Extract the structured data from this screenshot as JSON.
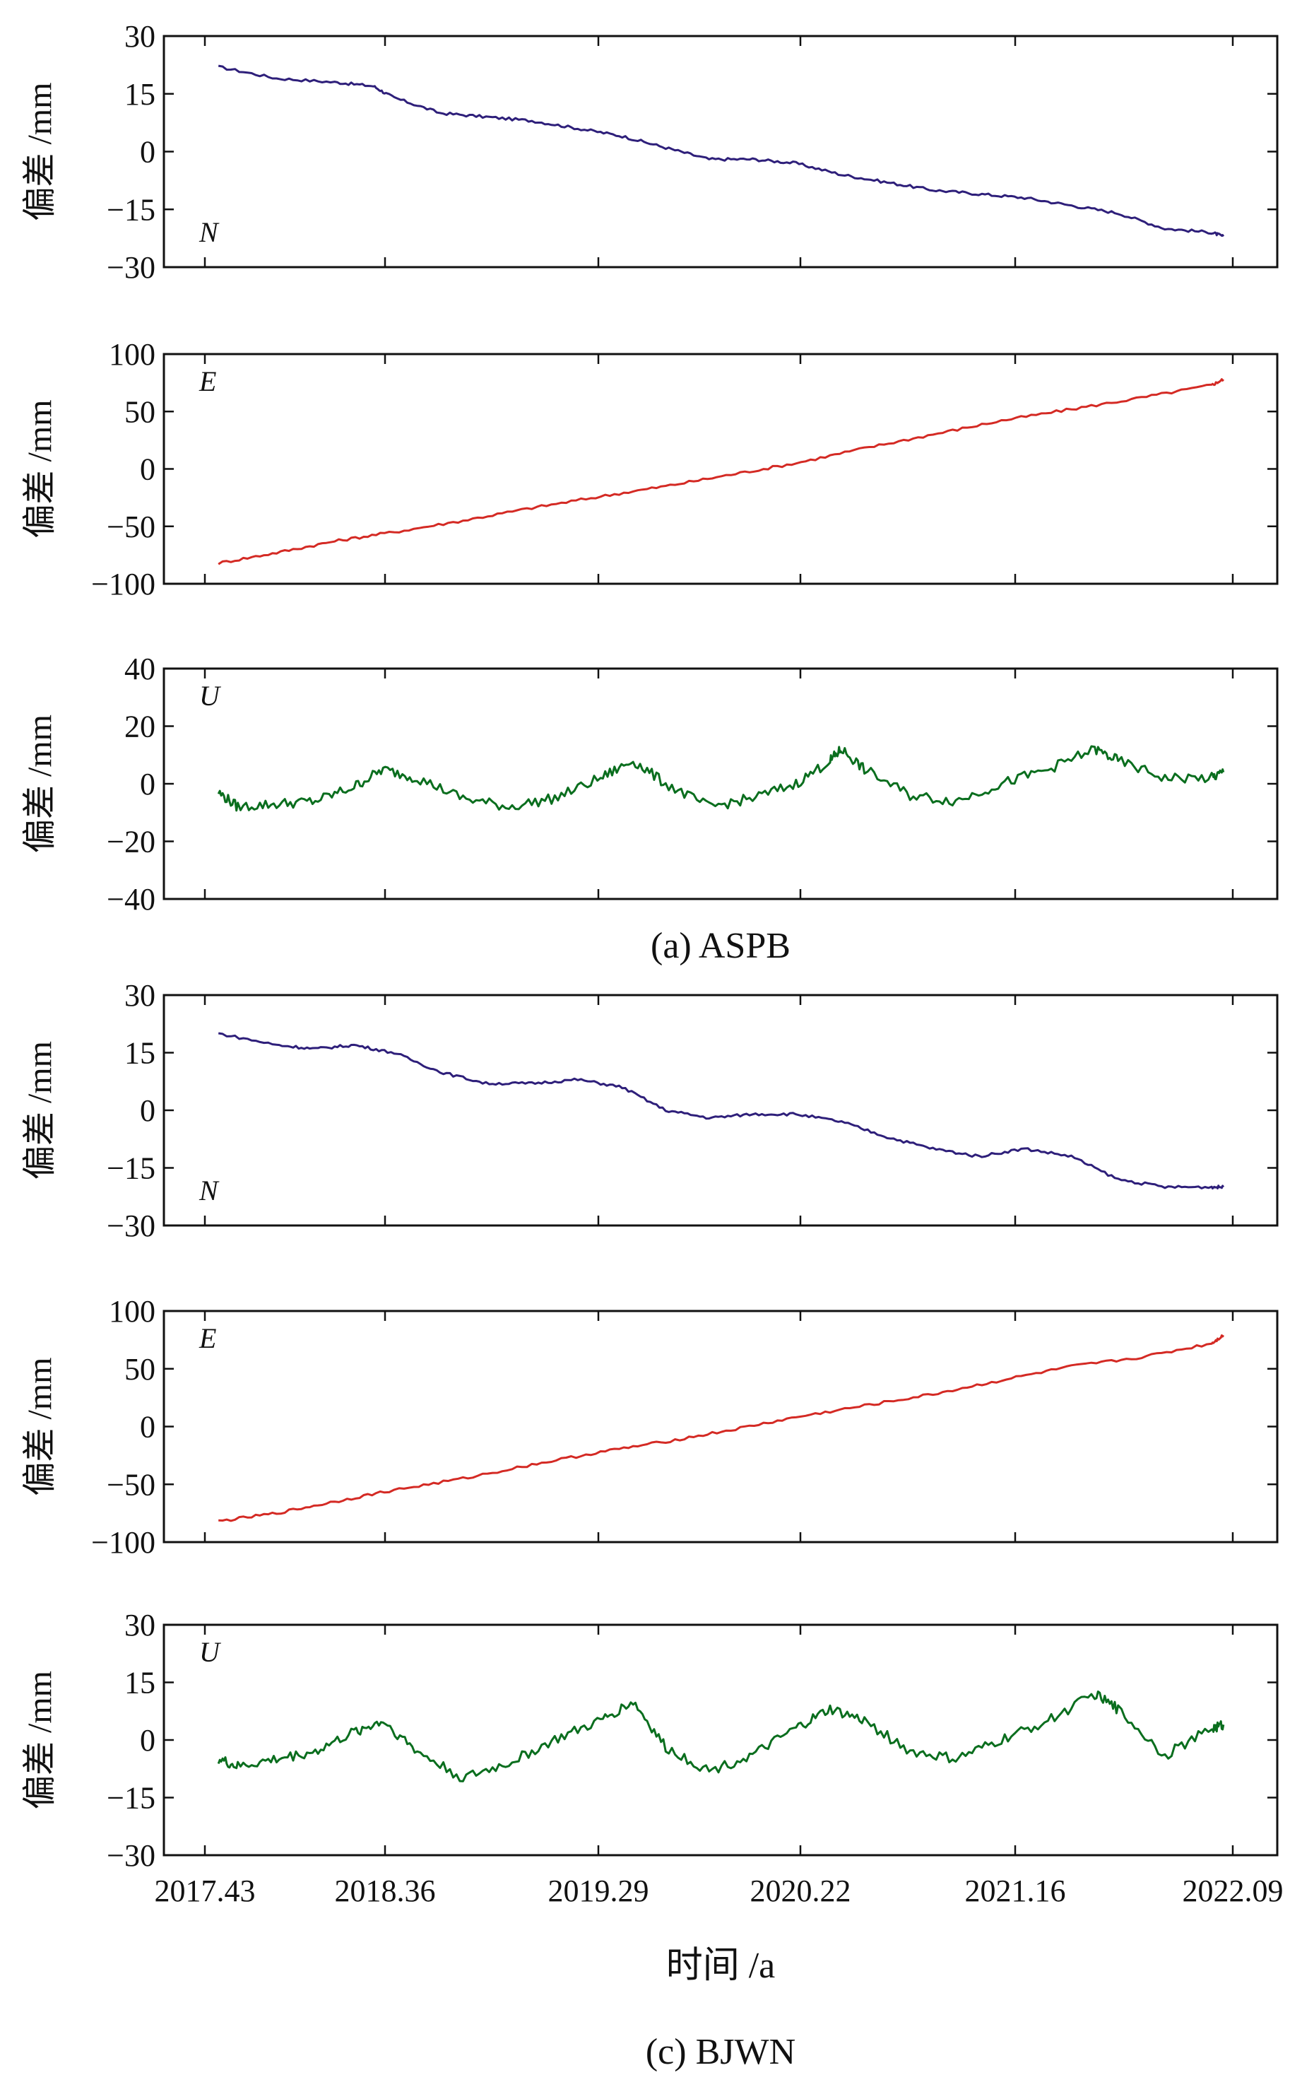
{
  "captions": {
    "top": "(a) ASPB",
    "bottom": "(c) BJWN",
    "xaxis_label": "时间 /a"
  },
  "x_ticks": [
    "2017.43",
    "2018.36",
    "2019.29",
    "2020.22",
    "2021.16",
    "2022.09"
  ],
  "colors": {
    "N": "#2e1f7a",
    "E": "#d42a24",
    "U": "#0a6e1e"
  },
  "chart_data": [
    {
      "type": "line",
      "group": "ASPB",
      "component": "N",
      "label": "N",
      "ylabel": "偏差 /mm",
      "ylim": [
        -30,
        30
      ],
      "yticks": [
        "30",
        "15",
        "0",
        "-15",
        "-30"
      ],
      "xlim": [
        2017.43,
        2022.09
      ],
      "x": [
        2017.5,
        2017.8,
        2018.1,
        2018.3,
        2018.4,
        2018.6,
        2018.8,
        2019.0,
        2019.2,
        2019.4,
        2019.6,
        2019.8,
        2020.0,
        2020.2,
        2020.4,
        2020.6,
        2020.8,
        2021.0,
        2021.2,
        2021.4,
        2021.6,
        2021.8,
        2022.0,
        2022.05
      ],
      "values": [
        22,
        19,
        18,
        17,
        14,
        10,
        9,
        8,
        6,
        4,
        1,
        -2,
        -2,
        -3,
        -6,
        -8,
        -10,
        -11,
        -12,
        -14,
        -16,
        -20,
        -21,
        -22
      ]
    },
    {
      "type": "line",
      "group": "ASPB",
      "component": "E",
      "label": "E",
      "ylabel": "偏差 /mm",
      "ylim": [
        -100,
        100
      ],
      "yticks": [
        "100",
        "50",
        "0",
        "-50",
        "-100"
      ],
      "xlim": [
        2017.43,
        2022.09
      ],
      "x": [
        2017.5,
        2017.8,
        2018.1,
        2018.4,
        2018.7,
        2019.0,
        2019.3,
        2019.6,
        2019.9,
        2020.2,
        2020.5,
        2020.8,
        2021.1,
        2021.4,
        2021.7,
        2022.0,
        2022.05
      ],
      "values": [
        -82,
        -73,
        -63,
        -55,
        -45,
        -34,
        -24,
        -15,
        -5,
        5,
        18,
        30,
        42,
        52,
        62,
        73,
        78
      ]
    },
    {
      "type": "line",
      "group": "ASPB",
      "component": "U",
      "label": "U",
      "ylabel": "偏差 /mm",
      "ylim": [
        -40,
        40
      ],
      "yticks": [
        "40",
        "20",
        "0",
        "-20",
        "-40"
      ],
      "xlim": [
        2017.43,
        2022.09
      ],
      "x": [
        2017.5,
        2017.6,
        2017.8,
        2018.0,
        2018.2,
        2018.35,
        2018.5,
        2018.7,
        2018.9,
        2019.1,
        2019.3,
        2019.45,
        2019.6,
        2019.8,
        2020.0,
        2020.2,
        2020.35,
        2020.4,
        2020.5,
        2020.7,
        2020.9,
        2021.1,
        2021.3,
        2021.5,
        2021.6,
        2021.8,
        2022.0,
        2022.05
      ],
      "values": [
        -3,
        -8,
        -7,
        -6,
        -1,
        5,
        2,
        -5,
        -8,
        -5,
        2,
        8,
        0,
        -8,
        -5,
        0,
        8,
        12,
        5,
        -4,
        -6,
        0,
        5,
        12,
        8,
        2,
        2,
        4
      ]
    },
    {
      "type": "line",
      "group": "BJWN",
      "component": "N",
      "label": "N",
      "ylabel": "偏差 /mm",
      "ylim": [
        -30,
        30
      ],
      "yticks": [
        "30",
        "15",
        "0",
        "-15",
        "-30"
      ],
      "xlim": [
        2017.43,
        2022.09
      ],
      "x": [
        2017.5,
        2017.8,
        2018.0,
        2018.2,
        2018.4,
        2018.6,
        2018.8,
        2019.0,
        2019.2,
        2019.4,
        2019.6,
        2019.8,
        2020.0,
        2020.2,
        2020.4,
        2020.6,
        2020.8,
        2021.0,
        2021.2,
        2021.4,
        2021.6,
        2021.8,
        2022.0,
        2022.05
      ],
      "values": [
        20,
        17,
        16,
        17,
        15,
        10,
        7,
        7,
        8,
        6,
        0,
        -2,
        -1,
        -1,
        -3,
        -7,
        -10,
        -12,
        -10,
        -12,
        -18,
        -20,
        -20,
        -20
      ]
    },
    {
      "type": "line",
      "group": "BJWN",
      "component": "E",
      "label": "E",
      "ylabel": "偏差 /mm",
      "ylim": [
        -100,
        100
      ],
      "yticks": [
        "100",
        "50",
        "0",
        "-50",
        "-100"
      ],
      "xlim": [
        2017.43,
        2022.09
      ],
      "x": [
        2017.5,
        2017.8,
        2018.1,
        2018.4,
        2018.7,
        2019.0,
        2019.3,
        2019.6,
        2019.9,
        2020.2,
        2020.5,
        2020.8,
        2021.1,
        2021.4,
        2021.7,
        2022.0,
        2022.05
      ],
      "values": [
        -82,
        -75,
        -65,
        -55,
        -45,
        -33,
        -22,
        -13,
        -3,
        8,
        18,
        28,
        40,
        52,
        60,
        72,
        79
      ]
    },
    {
      "type": "line",
      "group": "BJWN",
      "component": "U",
      "label": "U",
      "ylabel": "偏差 /mm",
      "ylim": [
        -30,
        30
      ],
      "yticks": [
        "30",
        "15",
        "0",
        "-15",
        "-30"
      ],
      "xlim": [
        2017.43,
        2022.09
      ],
      "x": [
        2017.5,
        2017.6,
        2017.8,
        2018.0,
        2018.2,
        2018.35,
        2018.5,
        2018.7,
        2018.9,
        2019.1,
        2019.3,
        2019.45,
        2019.6,
        2019.8,
        2020.0,
        2020.2,
        2020.35,
        2020.5,
        2020.7,
        2020.9,
        2021.1,
        2021.3,
        2021.5,
        2021.6,
        2021.8,
        2022.0,
        2022.05
      ],
      "values": [
        -5,
        -7,
        -5,
        -3,
        2,
        5,
        -3,
        -10,
        -6,
        0,
        5,
        10,
        -2,
        -8,
        -4,
        3,
        8,
        5,
        -3,
        -5,
        0,
        5,
        12,
        8,
        -4,
        3,
        4
      ]
    }
  ]
}
